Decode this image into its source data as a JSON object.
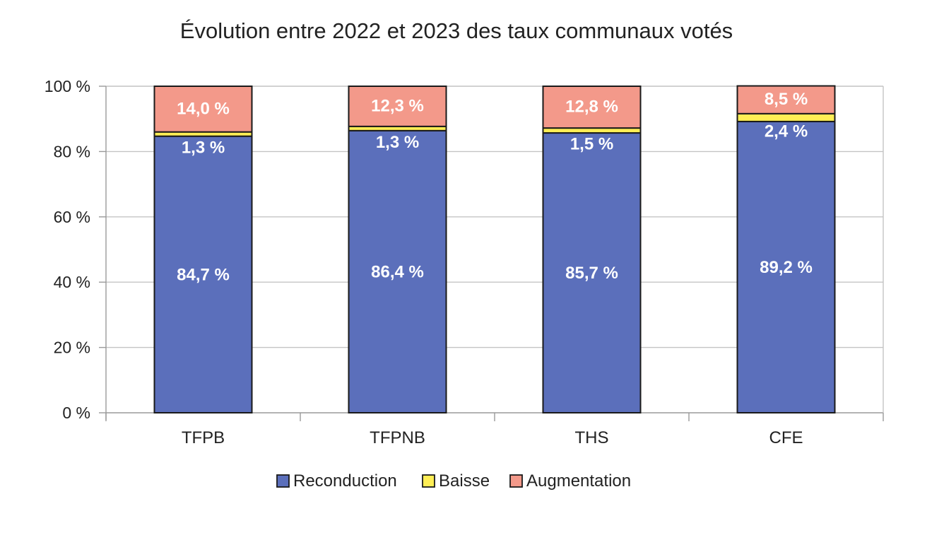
{
  "chart_data": {
    "type": "bar",
    "stacked": true,
    "title": "Évolution entre 2022 et 2023 des taux communaux votés",
    "categories": [
      "TFPB",
      "TFPNB",
      "THS",
      "CFE"
    ],
    "series": [
      {
        "name": "Reconduction",
        "color": "#5b6fbb",
        "values": [
          84.7,
          86.4,
          85.7,
          89.2
        ],
        "labels": [
          "84,7 %",
          "86,4 %",
          "85,7 %",
          "89,2 %"
        ]
      },
      {
        "name": "Baisse",
        "color": "#ffee55",
        "values": [
          1.3,
          1.3,
          1.5,
          2.4
        ],
        "labels": [
          "1,3 %",
          "1,3 %",
          "1,5 %",
          "2,4 %"
        ]
      },
      {
        "name": "Augmentation",
        "color": "#f3998a",
        "values": [
          14.0,
          12.3,
          12.8,
          8.5
        ],
        "labels": [
          "14,0 %",
          "12,3 %",
          "12,8 %",
          "8,5 %"
        ]
      }
    ],
    "ylim": [
      0,
      100
    ],
    "yticks": [
      0,
      20,
      40,
      60,
      80,
      100
    ],
    "ytick_labels": [
      "0 %",
      "20 %",
      "40 %",
      "60 %",
      "80 %",
      "100 %"
    ],
    "grid": true,
    "legend_position": "bottom"
  }
}
